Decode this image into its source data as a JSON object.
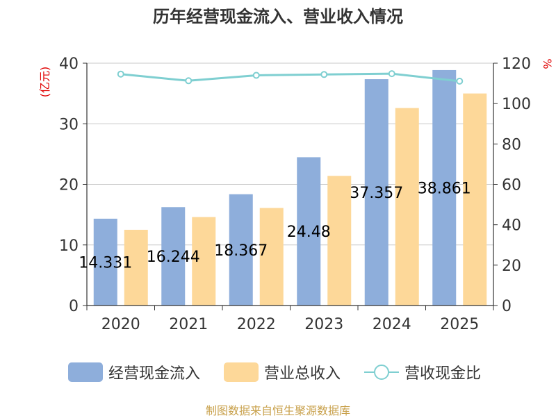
{
  "title": "历年经营现金流入、营业收入情况",
  "source": "制图数据来自恒生聚源数据库",
  "colors": {
    "cash_inflow": "#8eaedb",
    "revenue": "#fdd899",
    "ratio": "#7fcfd1",
    "left_unit": "#e00000",
    "right_unit": "#e00000",
    "grid": "#c8c8c8",
    "axis": "#333333"
  },
  "chart_data": {
    "type": "bar",
    "title": "历年经营现金流入、营业收入情况",
    "categories": [
      "2020",
      "2021",
      "2022",
      "2023",
      "2024",
      "2025"
    ],
    "series": [
      {
        "name": "经营现金流入",
        "type": "bar",
        "axis": "left",
        "values": [
          14.331,
          16.244,
          18.367,
          24.48,
          37.357,
          38.861
        ],
        "labels": [
          "14.331",
          "16.244",
          "18.367",
          "24.48",
          "37.357",
          "38.861"
        ]
      },
      {
        "name": "营业总收入",
        "type": "bar",
        "axis": "left",
        "values": [
          12.5,
          14.6,
          16.1,
          21.4,
          32.6,
          35.0
        ]
      },
      {
        "name": "营收现金比",
        "type": "line",
        "axis": "right",
        "values": [
          114.6,
          111.3,
          114.0,
          114.4,
          114.8,
          111.1
        ]
      }
    ],
    "left_axis": {
      "unit": "(亿元)",
      "ylim": [
        0,
        40
      ],
      "ticks": [
        "0",
        "10",
        "20",
        "30",
        "40"
      ]
    },
    "right_axis": {
      "unit": "%",
      "ylim": [
        0,
        120
      ],
      "ticks": [
        "0",
        "20",
        "40",
        "60",
        "80",
        "100",
        "120"
      ]
    },
    "grid": true,
    "legend_position": "bottom"
  },
  "legend": [
    {
      "label": "经营现金流入"
    },
    {
      "label": "营业总收入"
    },
    {
      "label": "营收现金比"
    }
  ]
}
